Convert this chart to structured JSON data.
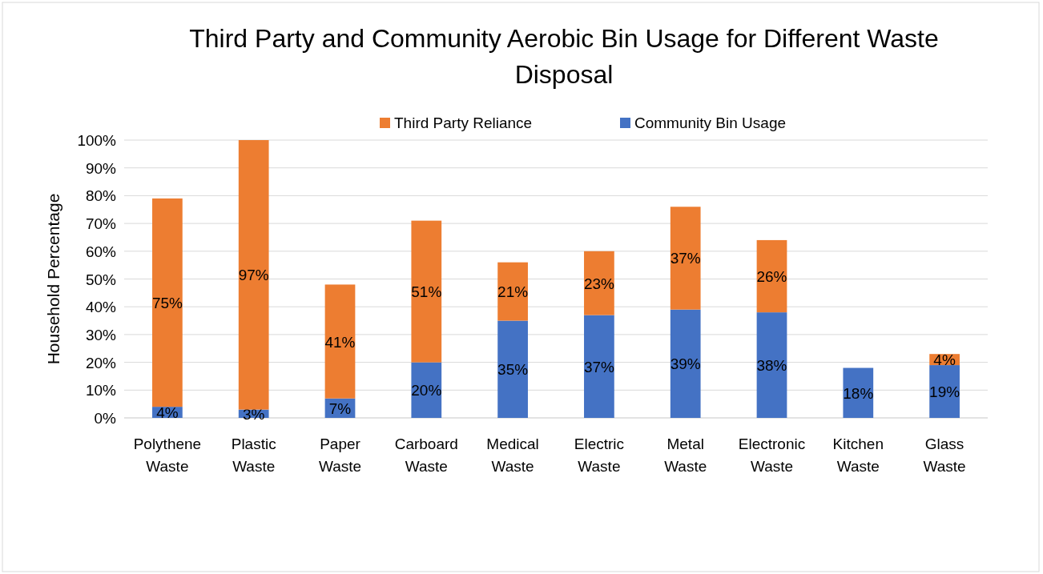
{
  "chart_data": {
    "type": "bar",
    "stacked": true,
    "title": "Third Party and Community Aerobic Bin Usage for Different Waste Disposal",
    "ylabel": "Household Percentage",
    "categories": [
      "Polythene Waste",
      "Plastic Waste",
      "Paper Waste",
      "Carboard Waste",
      "Medical Waste",
      "Electric Waste",
      "Metal Waste",
      "Electronic Waste",
      "Kitchen Waste",
      "Glass Waste"
    ],
    "series": [
      {
        "name": "Community Bin Usage",
        "color": "#4472c4",
        "values": [
          4,
          3,
          7,
          20,
          35,
          37,
          39,
          38,
          18,
          19
        ],
        "value_labels": [
          "4%",
          "3%",
          "7%",
          "20%",
          "35%",
          "37%",
          "39%",
          "38%",
          "18%",
          "19%"
        ]
      },
      {
        "name": "Third Party Reliance",
        "color": "#ed7d31",
        "values": [
          75,
          97,
          41,
          51,
          21,
          23,
          37,
          26,
          null,
          4
        ],
        "value_labels": [
          "75%",
          "97%",
          "41%",
          "51%",
          "21%",
          "23%",
          "37%",
          "26%",
          null,
          "4%"
        ]
      }
    ],
    "ylim": [
      0,
      100
    ],
    "yticks": [
      {
        "value": 0,
        "label": "0%"
      },
      {
        "value": 10,
        "label": "10%"
      },
      {
        "value": 20,
        "label": "20%"
      },
      {
        "value": 30,
        "label": "30%"
      },
      {
        "value": 40,
        "label": "40%"
      },
      {
        "value": 50,
        "label": "50%"
      },
      {
        "value": 60,
        "label": "60%"
      },
      {
        "value": 70,
        "label": "70%"
      },
      {
        "value": 80,
        "label": "80%"
      },
      {
        "value": 90,
        "label": "90%"
      },
      {
        "value": 100,
        "label": "100%"
      }
    ],
    "grid": "y",
    "legend": "top"
  }
}
